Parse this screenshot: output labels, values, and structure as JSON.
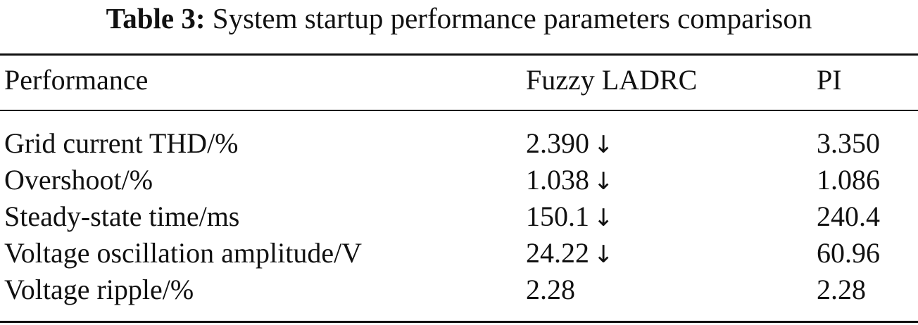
{
  "caption": {
    "label": "Table 3:",
    "title": "System startup performance parameters comparison"
  },
  "table": {
    "headers": [
      "Performance",
      "Fuzzy LADRC",
      "PI"
    ],
    "rows": [
      {
        "metric": "Grid current THD/%",
        "fuzzy": "2.390",
        "fuzzy_mark": "↓",
        "pi": "3.350"
      },
      {
        "metric": "Overshoot/%",
        "fuzzy": "1.038",
        "fuzzy_mark": "↓",
        "pi": "1.086"
      },
      {
        "metric": "Steady-state time/ms",
        "fuzzy": "150.1",
        "fuzzy_mark": "↓",
        "pi": "240.4"
      },
      {
        "metric": "Voltage oscillation amplitude/V",
        "fuzzy": "24.22",
        "fuzzy_mark": "↓",
        "pi": "60.96"
      },
      {
        "metric": "Voltage ripple/%",
        "fuzzy": "2.28",
        "fuzzy_mark": "",
        "pi": "2.28"
      }
    ]
  }
}
